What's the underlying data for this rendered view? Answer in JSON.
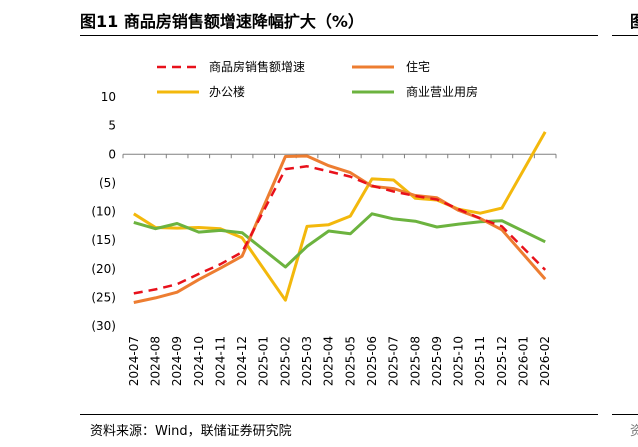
{
  "header": {
    "title": "图11 商品房销售额增速降幅扩大（%）",
    "next_panel_title_fragment": "图"
  },
  "footer": {
    "source": "资料来源：Wind，联储证券研究院",
    "next_panel_source_fragment": "资"
  },
  "chart_data": {
    "type": "line",
    "title": "图11 商品房销售额增速降幅扩大（%）",
    "xlabel": "",
    "ylabel": "",
    "ylim": [
      -30,
      10
    ],
    "yticks": [
      10,
      5,
      0,
      -5,
      -10,
      -15,
      -20,
      -25,
      -30
    ],
    "ytick_labels": [
      "10",
      "5",
      "0",
      "(5)",
      "(10)",
      "(15)",
      "(20)",
      "(25)",
      "(30)"
    ],
    "grid": false,
    "legend_position": "top",
    "categories": [
      "2024-07",
      "2024-08",
      "2024-09",
      "2024-10",
      "2024-11",
      "2024-12",
      "2025-01",
      "2025-02",
      "2025-03",
      "2025-04",
      "2025-05",
      "2025-06",
      "2025-07",
      "2025-08",
      "2025-09",
      "2025-10",
      "2025-11",
      "2025-12",
      "2026-01",
      "2026-02"
    ],
    "series": [
      {
        "name": "商品房销售额增速",
        "color": "#e8111b",
        "style": "dashed",
        "values": [
          -24.3,
          -23.6,
          -22.7,
          -20.9,
          -19.2,
          -17.1,
          null,
          -2.6,
          -2.1,
          -3.0,
          -3.9,
          -5.5,
          -6.5,
          -7.3,
          -7.9,
          -9.6,
          -11.2,
          -12.6,
          null,
          -20.2
        ]
      },
      {
        "name": "住宅",
        "color": "#ed7d31",
        "style": "solid",
        "values": [
          -25.9,
          -25.1,
          -24.1,
          -21.9,
          -19.9,
          -17.8,
          null,
          -0.4,
          -0.3,
          -2.0,
          -3.2,
          -5.6,
          -6.0,
          -7.2,
          -7.6,
          -9.8,
          -11.2,
          -13.2,
          null,
          -21.8
        ]
      },
      {
        "name": "办公楼",
        "color": "#f3b80c",
        "style": "solid",
        "values": [
          -10.4,
          -12.8,
          -12.9,
          -12.8,
          -13.0,
          -14.6,
          null,
          -25.5,
          -12.6,
          -12.3,
          -10.8,
          -4.3,
          -4.5,
          -7.7,
          -8.0,
          -9.6,
          -10.3,
          -9.4,
          null,
          3.9
        ]
      },
      {
        "name": "商业营业用房",
        "color": "#6cb33f",
        "style": "solid",
        "values": [
          -11.9,
          -13.0,
          -12.1,
          -13.6,
          -13.3,
          -13.7,
          null,
          -19.7,
          -16.1,
          -13.4,
          -13.9,
          -10.4,
          -11.3,
          -11.7,
          -12.7,
          -12.2,
          -11.8,
          -11.6,
          null,
          -15.3
        ]
      }
    ]
  }
}
